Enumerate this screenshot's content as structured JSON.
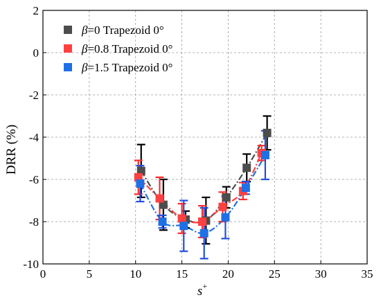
{
  "chart_data": {
    "type": "scatter",
    "xlabel": "s+",
    "xlabel_main": "s",
    "xlabel_sup": "+",
    "ylabel": "DRR (%)",
    "xlim": [
      0,
      35
    ],
    "ylim": [
      -10,
      2
    ],
    "xticks": [
      0,
      5,
      10,
      15,
      20,
      25,
      30,
      35
    ],
    "yticks": [
      2,
      0,
      -2,
      -4,
      -6,
      -8,
      -10
    ],
    "grid": true,
    "legend_position": "top-left",
    "series": [
      {
        "name": "β=0 Trapezoid 0°",
        "legend_symbol": "β",
        "legend_rest": "=0 Trapezoid 0°",
        "color": "#4d4d4d",
        "line_style": "dashdot",
        "points": [
          {
            "x": 10.6,
            "y": -5.6,
            "err": 1.25
          },
          {
            "x": 13.0,
            "y": -7.2,
            "err": 1.2
          },
          {
            "x": 15.4,
            "y": -7.9,
            "err": 0.4
          },
          {
            "x": 17.6,
            "y": -7.95,
            "err": 1.1
          },
          {
            "x": 19.8,
            "y": -6.85,
            "err": 0.5
          },
          {
            "x": 22.0,
            "y": -5.45,
            "err": 0.65
          },
          {
            "x": 24.2,
            "y": -3.8,
            "err": 0.8
          }
        ]
      },
      {
        "name": "β=0.8 Trapezoid 0°",
        "legend_symbol": "β",
        "legend_rest": "=0.8 Trapezoid 0°",
        "color": "#ff4040",
        "line_style": "dashdot",
        "points": [
          {
            "x": 10.3,
            "y": -5.9,
            "err": 0.8
          },
          {
            "x": 12.6,
            "y": -6.9,
            "err": 1.0
          },
          {
            "x": 15.0,
            "y": -7.85,
            "err": 0.7
          },
          {
            "x": 17.2,
            "y": -8.0,
            "err": 0.75
          },
          {
            "x": 19.4,
            "y": -7.3,
            "err": 0.7
          },
          {
            "x": 21.6,
            "y": -6.55,
            "err": 0.4
          },
          {
            "x": 23.6,
            "y": -4.75,
            "err": 0.35
          }
        ]
      },
      {
        "name": "β=1.5 Trapezoid 0°",
        "legend_symbol": "β",
        "legend_rest": "=1.5 Trapezoid 0°",
        "color": "#1f6fe5",
        "line_style": "dashdot",
        "points": [
          {
            "x": 10.5,
            "y": -6.2,
            "err": 0.85
          },
          {
            "x": 12.9,
            "y": -8.0,
            "err": 0.3
          },
          {
            "x": 15.2,
            "y": -8.2,
            "err": 1.2
          },
          {
            "x": 17.4,
            "y": -8.55,
            "err": 1.2
          },
          {
            "x": 19.7,
            "y": -7.8,
            "err": 1.0
          },
          {
            "x": 21.9,
            "y": -6.4,
            "err": 0.3
          },
          {
            "x": 24.0,
            "y": -4.85,
            "err": 1.15
          }
        ]
      }
    ]
  }
}
